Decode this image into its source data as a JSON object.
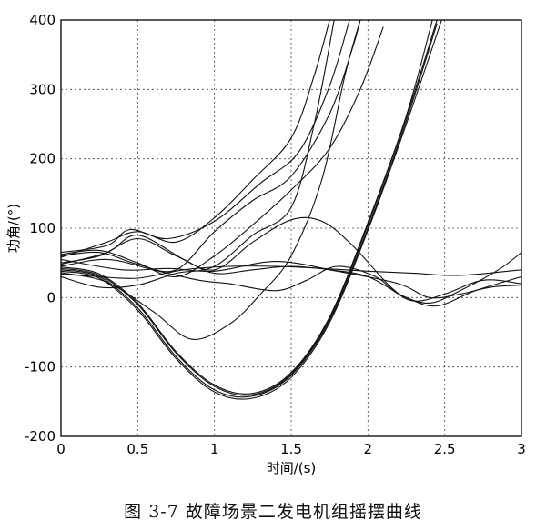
{
  "figure": {
    "caption": "图 3-7 故障场景二发电机组摇摆曲线"
  },
  "chart_data": {
    "type": "line",
    "xlabel": "时间/(s)",
    "ylabel": "功角/(°)",
    "xlim": [
      0,
      3
    ],
    "ylim": [
      -200,
      400
    ],
    "xticks": [
      "0",
      "0.5",
      "1",
      "1.5",
      "2",
      "2.5",
      "3"
    ],
    "yticks": [
      "-200",
      "-100",
      "0",
      "100",
      "200",
      "300",
      "400"
    ],
    "grid": true,
    "series": [
      {
        "points": [
          [
            0,
            42
          ],
          [
            0.25,
            32
          ],
          [
            0.5,
            -10
          ],
          [
            0.75,
            -80
          ],
          [
            1.0,
            -128
          ],
          [
            1.25,
            -140
          ],
          [
            1.5,
            -110
          ],
          [
            1.75,
            -30
          ],
          [
            2.0,
            105
          ],
          [
            2.25,
            260
          ],
          [
            2.45,
            400
          ]
        ]
      },
      {
        "points": [
          [
            0,
            40
          ],
          [
            0.25,
            30
          ],
          [
            0.5,
            -15
          ],
          [
            0.75,
            -85
          ],
          [
            1.0,
            -133
          ],
          [
            1.25,
            -142
          ],
          [
            1.5,
            -112
          ],
          [
            1.75,
            -33
          ],
          [
            2.0,
            100
          ],
          [
            2.25,
            255
          ],
          [
            2.45,
            395
          ]
        ]
      },
      {
        "points": [
          [
            0,
            38
          ],
          [
            0.25,
            28
          ],
          [
            0.5,
            -18
          ],
          [
            0.75,
            -88
          ],
          [
            1.0,
            -136
          ],
          [
            1.25,
            -145
          ],
          [
            1.5,
            -115
          ],
          [
            1.75,
            -36
          ],
          [
            2.0,
            97
          ],
          [
            2.25,
            250
          ],
          [
            2.48,
            400
          ]
        ]
      },
      {
        "points": [
          [
            0,
            44
          ],
          [
            0.25,
            34
          ],
          [
            0.5,
            -8
          ],
          [
            0.75,
            -78
          ],
          [
            1.0,
            -126
          ],
          [
            1.25,
            -138
          ],
          [
            1.5,
            -108
          ],
          [
            1.75,
            -28
          ],
          [
            2.0,
            108
          ],
          [
            2.25,
            262
          ],
          [
            2.42,
            400
          ]
        ]
      },
      {
        "points": [
          [
            0,
            36
          ],
          [
            0.3,
            22
          ],
          [
            0.6,
            -20
          ],
          [
            0.85,
            -60
          ],
          [
            1.1,
            -38
          ],
          [
            1.3,
            5
          ],
          [
            1.5,
            60
          ],
          [
            1.7,
            170
          ],
          [
            1.85,
            320
          ],
          [
            1.95,
            400
          ]
        ]
      },
      {
        "points": [
          [
            0,
            62
          ],
          [
            0.25,
            68
          ],
          [
            0.5,
            50
          ],
          [
            0.75,
            30
          ],
          [
            1.0,
            60
          ],
          [
            1.25,
            105
          ],
          [
            1.5,
            155
          ],
          [
            1.75,
            215
          ],
          [
            1.95,
            300
          ],
          [
            2.1,
            390
          ]
        ]
      },
      {
        "points": [
          [
            0,
            60
          ],
          [
            0.25,
            65
          ],
          [
            0.5,
            48
          ],
          [
            0.75,
            40
          ],
          [
            1.0,
            95
          ],
          [
            1.25,
            140
          ],
          [
            1.5,
            175
          ],
          [
            1.75,
            265
          ],
          [
            1.9,
            360
          ],
          [
            1.95,
            400
          ]
        ]
      },
      {
        "points": [
          [
            0,
            65
          ],
          [
            0.3,
            75
          ],
          [
            0.45,
            98
          ],
          [
            0.7,
            85
          ],
          [
            1.0,
            110
          ],
          [
            1.3,
            165
          ],
          [
            1.55,
            210
          ],
          [
            1.75,
            305
          ],
          [
            1.88,
            400
          ]
        ]
      },
      {
        "points": [
          [
            0,
            58
          ],
          [
            0.3,
            80
          ],
          [
            0.5,
            95
          ],
          [
            0.75,
            80
          ],
          [
            1.0,
            115
          ],
          [
            1.25,
            170
          ],
          [
            1.5,
            230
          ],
          [
            1.65,
            320
          ],
          [
            1.75,
            400
          ]
        ]
      },
      {
        "points": [
          [
            0,
            30
          ],
          [
            0.25,
            15
          ],
          [
            0.5,
            18
          ],
          [
            0.75,
            35
          ],
          [
            1.0,
            45
          ],
          [
            1.25,
            90
          ],
          [
            1.5,
            130
          ],
          [
            1.65,
            250
          ],
          [
            1.78,
            400
          ]
        ]
      },
      {
        "points": [
          [
            0,
            50
          ],
          [
            0.25,
            60
          ],
          [
            0.5,
            85
          ],
          [
            0.75,
            60
          ],
          [
            1.0,
            40
          ],
          [
            1.25,
            80
          ],
          [
            1.5,
            112
          ],
          [
            1.7,
            110
          ],
          [
            1.9,
            75
          ],
          [
            2.15,
            15
          ],
          [
            2.3,
            -5
          ],
          [
            2.5,
            5
          ],
          [
            2.75,
            25
          ],
          [
            3.0,
            20
          ]
        ]
      },
      {
        "points": [
          [
            0,
            48
          ],
          [
            0.3,
            65
          ],
          [
            0.5,
            90
          ],
          [
            0.8,
            55
          ],
          [
            1.0,
            35
          ],
          [
            1.25,
            40
          ],
          [
            1.5,
            45
          ],
          [
            1.75,
            40
          ],
          [
            2.0,
            30
          ],
          [
            2.25,
            0
          ],
          [
            2.45,
            -12
          ],
          [
            2.7,
            10
          ],
          [
            3.0,
            30
          ]
        ]
      },
      {
        "points": [
          [
            0,
            45
          ],
          [
            0.3,
            55
          ],
          [
            0.6,
            40
          ],
          [
            0.9,
            25
          ],
          [
            1.1,
            20
          ],
          [
            1.4,
            10
          ],
          [
            1.6,
            25
          ],
          [
            1.8,
            45
          ],
          [
            2.05,
            30
          ],
          [
            2.2,
            5
          ],
          [
            2.4,
            -8
          ],
          [
            2.6,
            10
          ],
          [
            2.85,
            40
          ],
          [
            3.0,
            65
          ]
        ]
      },
      {
        "points": [
          [
            0,
            34
          ],
          [
            0.25,
            30
          ],
          [
            0.5,
            28
          ],
          [
            0.8,
            40
          ],
          [
            1.1,
            45
          ],
          [
            1.4,
            45
          ],
          [
            1.7,
            42
          ],
          [
            2.0,
            38
          ],
          [
            2.3,
            35
          ],
          [
            2.6,
            32
          ],
          [
            3.0,
            40
          ]
        ]
      },
      {
        "points": [
          [
            0,
            55
          ],
          [
            0.4,
            40
          ],
          [
            0.7,
            42
          ],
          [
            1.0,
            38
          ],
          [
            1.4,
            52
          ],
          [
            1.8,
            38
          ],
          [
            2.2,
            20
          ],
          [
            2.4,
            0
          ],
          [
            2.6,
            5
          ],
          [
            2.8,
            15
          ],
          [
            3.0,
            18
          ]
        ]
      }
    ]
  }
}
